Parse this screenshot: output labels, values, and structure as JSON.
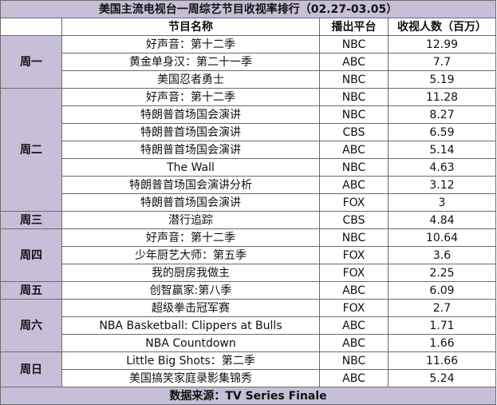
{
  "table": {
    "title": "美国主流电视台一周综艺节目收视率排行（02.27-03.05）",
    "headers": [
      "节目名称",
      "播出平台",
      "收视人数（百万）"
    ],
    "days": [
      {
        "day": "周一",
        "rows": [
          {
            "program": "好声音：第十二季",
            "platform": "NBC",
            "viewers": "12.99"
          },
          {
            "program": "黄金单身汉：第二十一季",
            "platform": "ABC",
            "viewers": "7.7"
          },
          {
            "program": "美国忍者勇士",
            "platform": "NBC",
            "viewers": "5.19"
          }
        ]
      },
      {
        "day": "周二",
        "rows": [
          {
            "program": "好声音：第十二季",
            "platform": "NBC",
            "viewers": "11.28"
          },
          {
            "program": "特朗普首场国会演讲",
            "platform": "NBC",
            "viewers": "8.27"
          },
          {
            "program": "特朗普首场国会演讲",
            "platform": "CBS",
            "viewers": "6.59"
          },
          {
            "program": "特朗普首场国会演讲",
            "platform": "ABC",
            "viewers": "5.14"
          },
          {
            "program": "The Wall",
            "platform": "NBC",
            "viewers": "4.63"
          },
          {
            "program": "特朗普首场国会演讲分析",
            "platform": "ABC",
            "viewers": "3.12"
          },
          {
            "program": "特朗普首场国会演讲",
            "platform": "FOX",
            "viewers": "3"
          }
        ]
      },
      {
        "day": "周三",
        "rows": [
          {
            "program": "潜行追踪",
            "platform": "CBS",
            "viewers": "4.84"
          }
        ]
      },
      {
        "day": "周四",
        "rows": [
          {
            "program": "好声音：第十二季",
            "platform": "NBC",
            "viewers": "10.64"
          },
          {
            "program": "少年厨艺大师：第五季",
            "platform": "FOX",
            "viewers": "3.6"
          },
          {
            "program": "我的厨房我做主",
            "platform": "FOX",
            "viewers": "2.25"
          }
        ]
      },
      {
        "day": "周五",
        "rows": [
          {
            "program": "创智赢家:第八季",
            "platform": "ABC",
            "viewers": "6.09"
          }
        ]
      },
      {
        "day": "周六",
        "rows": [
          {
            "program": "超级拳击冠军赛",
            "platform": "FOX",
            "viewers": "2.7"
          },
          {
            "program": "NBA Basketball: Clippers at Bulls",
            "platform": "ABC",
            "viewers": "1.71"
          },
          {
            "program": "NBA Countdown",
            "platform": "ABC",
            "viewers": "1.66"
          }
        ]
      },
      {
        "day": "周日",
        "rows": [
          {
            "program": "Little Big Shots：第二季",
            "platform": "NBC",
            "viewers": "11.66"
          },
          {
            "program": "美国搞笑家庭录影集锦秀",
            "platform": "ABC",
            "viewers": "5.24"
          }
        ]
      }
    ],
    "footer": "数据来源：TV Series Finale"
  },
  "colors": {
    "header_fill": "#c6bfd7",
    "border": "#6b6b6b"
  }
}
